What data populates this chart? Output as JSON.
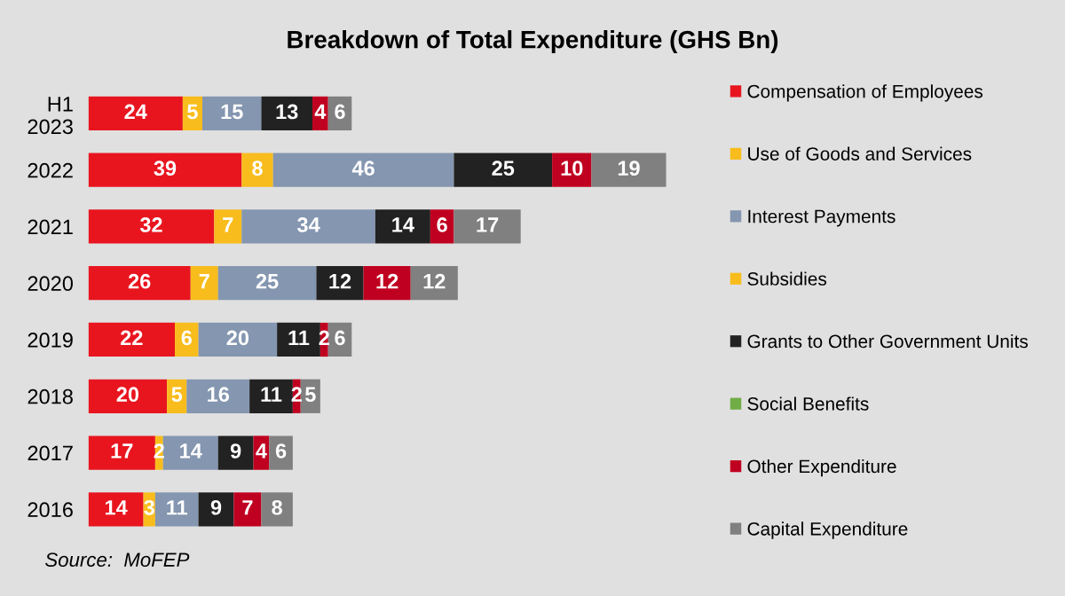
{
  "chart_data": {
    "type": "bar",
    "orientation": "horizontal",
    "stacked": true,
    "tick_labels": "y",
    "data_labels": true,
    "legend": "right",
    "grid": false,
    "title": "Breakdown of Total Expenditure (GHS Bn)",
    "annotations": [
      "Source:  MoFEP"
    ],
    "categories": [
      "H1\n2023",
      "2022",
      "2021",
      "2020",
      "2019",
      "2018",
      "2017",
      "2016"
    ],
    "series": [
      {
        "name": "Compensation of Employees",
        "color": "#e8151f",
        "values": [
          24,
          39,
          32,
          26,
          22,
          20,
          17,
          14
        ]
      },
      {
        "name": "Use of Goods and Services",
        "color": "#f8bc1c",
        "values": [
          5,
          8,
          7,
          7,
          6,
          5,
          2,
          3
        ]
      },
      {
        "name": "Interest Payments",
        "color": "#8496b0",
        "values": [
          15,
          46,
          34,
          25,
          20,
          16,
          14,
          11
        ]
      },
      {
        "name": "Subsidies",
        "color": "#f8bc1c",
        "values": [
          null,
          null,
          null,
          null,
          null,
          null,
          null,
          null
        ]
      },
      {
        "name": "Grants to Other Government Units",
        "color": "#222222",
        "values": [
          13,
          25,
          14,
          12,
          11,
          11,
          9,
          9
        ]
      },
      {
        "name": "Social Benefits",
        "color": "#70ad47",
        "values": [
          null,
          null,
          null,
          null,
          null,
          null,
          null,
          null
        ]
      },
      {
        "name": "Other Expenditure",
        "color": "#c00020",
        "values": [
          4,
          10,
          6,
          12,
          2,
          2,
          4,
          7
        ]
      },
      {
        "name": "Capital Expenditure",
        "color": "#808080",
        "values": [
          6,
          19,
          17,
          12,
          6,
          5,
          6,
          8
        ]
      }
    ]
  }
}
